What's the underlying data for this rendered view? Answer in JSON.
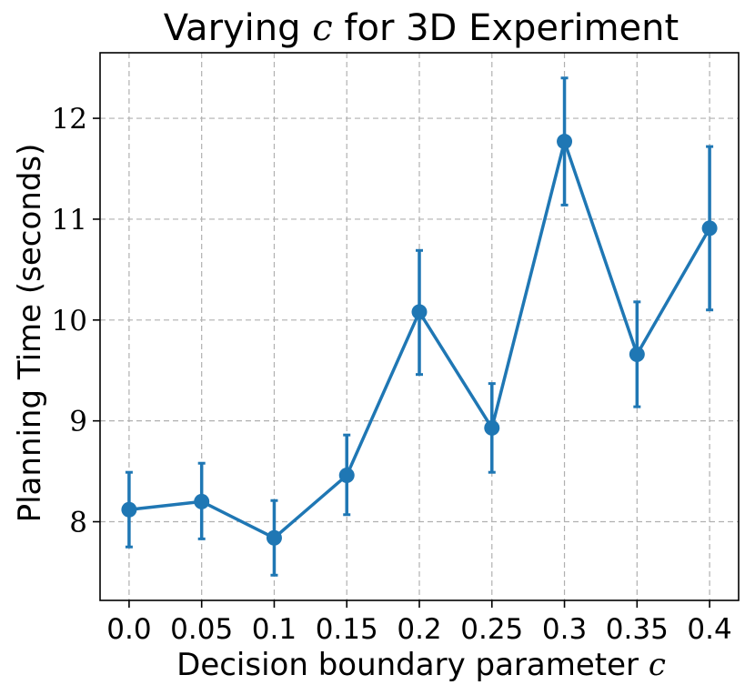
{
  "chart_data": {
    "type": "line",
    "title": "Varying",
    "title_var": "c",
    "title_suffix": "for 3D Experiment",
    "xlabel": "Decision boundary parameter",
    "xlabel_var": "c",
    "ylabel": "Planning Time (seconds)",
    "categories": [
      "0.0",
      "0.05",
      "0.1",
      "0.15",
      "0.2",
      "0.25",
      "0.3",
      "0.35",
      "0.4"
    ],
    "x": [
      0.0,
      0.05,
      0.1,
      0.15,
      0.2,
      0.25,
      0.3,
      0.35,
      0.4
    ],
    "series": [
      {
        "name": "Planning Time",
        "values": [
          8.12,
          8.2,
          7.84,
          8.46,
          10.08,
          8.93,
          11.77,
          9.66,
          10.91
        ],
        "err_low": [
          7.75,
          7.83,
          7.47,
          8.07,
          9.46,
          8.49,
          11.14,
          9.14,
          10.1
        ],
        "err_high": [
          8.49,
          8.58,
          8.21,
          8.86,
          10.69,
          9.37,
          12.4,
          10.18,
          11.72
        ]
      }
    ],
    "yticks": [
      8,
      9,
      10,
      11,
      12
    ],
    "ylim": [
      7.22,
      12.65
    ],
    "xlim": [
      -0.02,
      0.42
    ],
    "grid": true,
    "color": "#1f77b4"
  }
}
